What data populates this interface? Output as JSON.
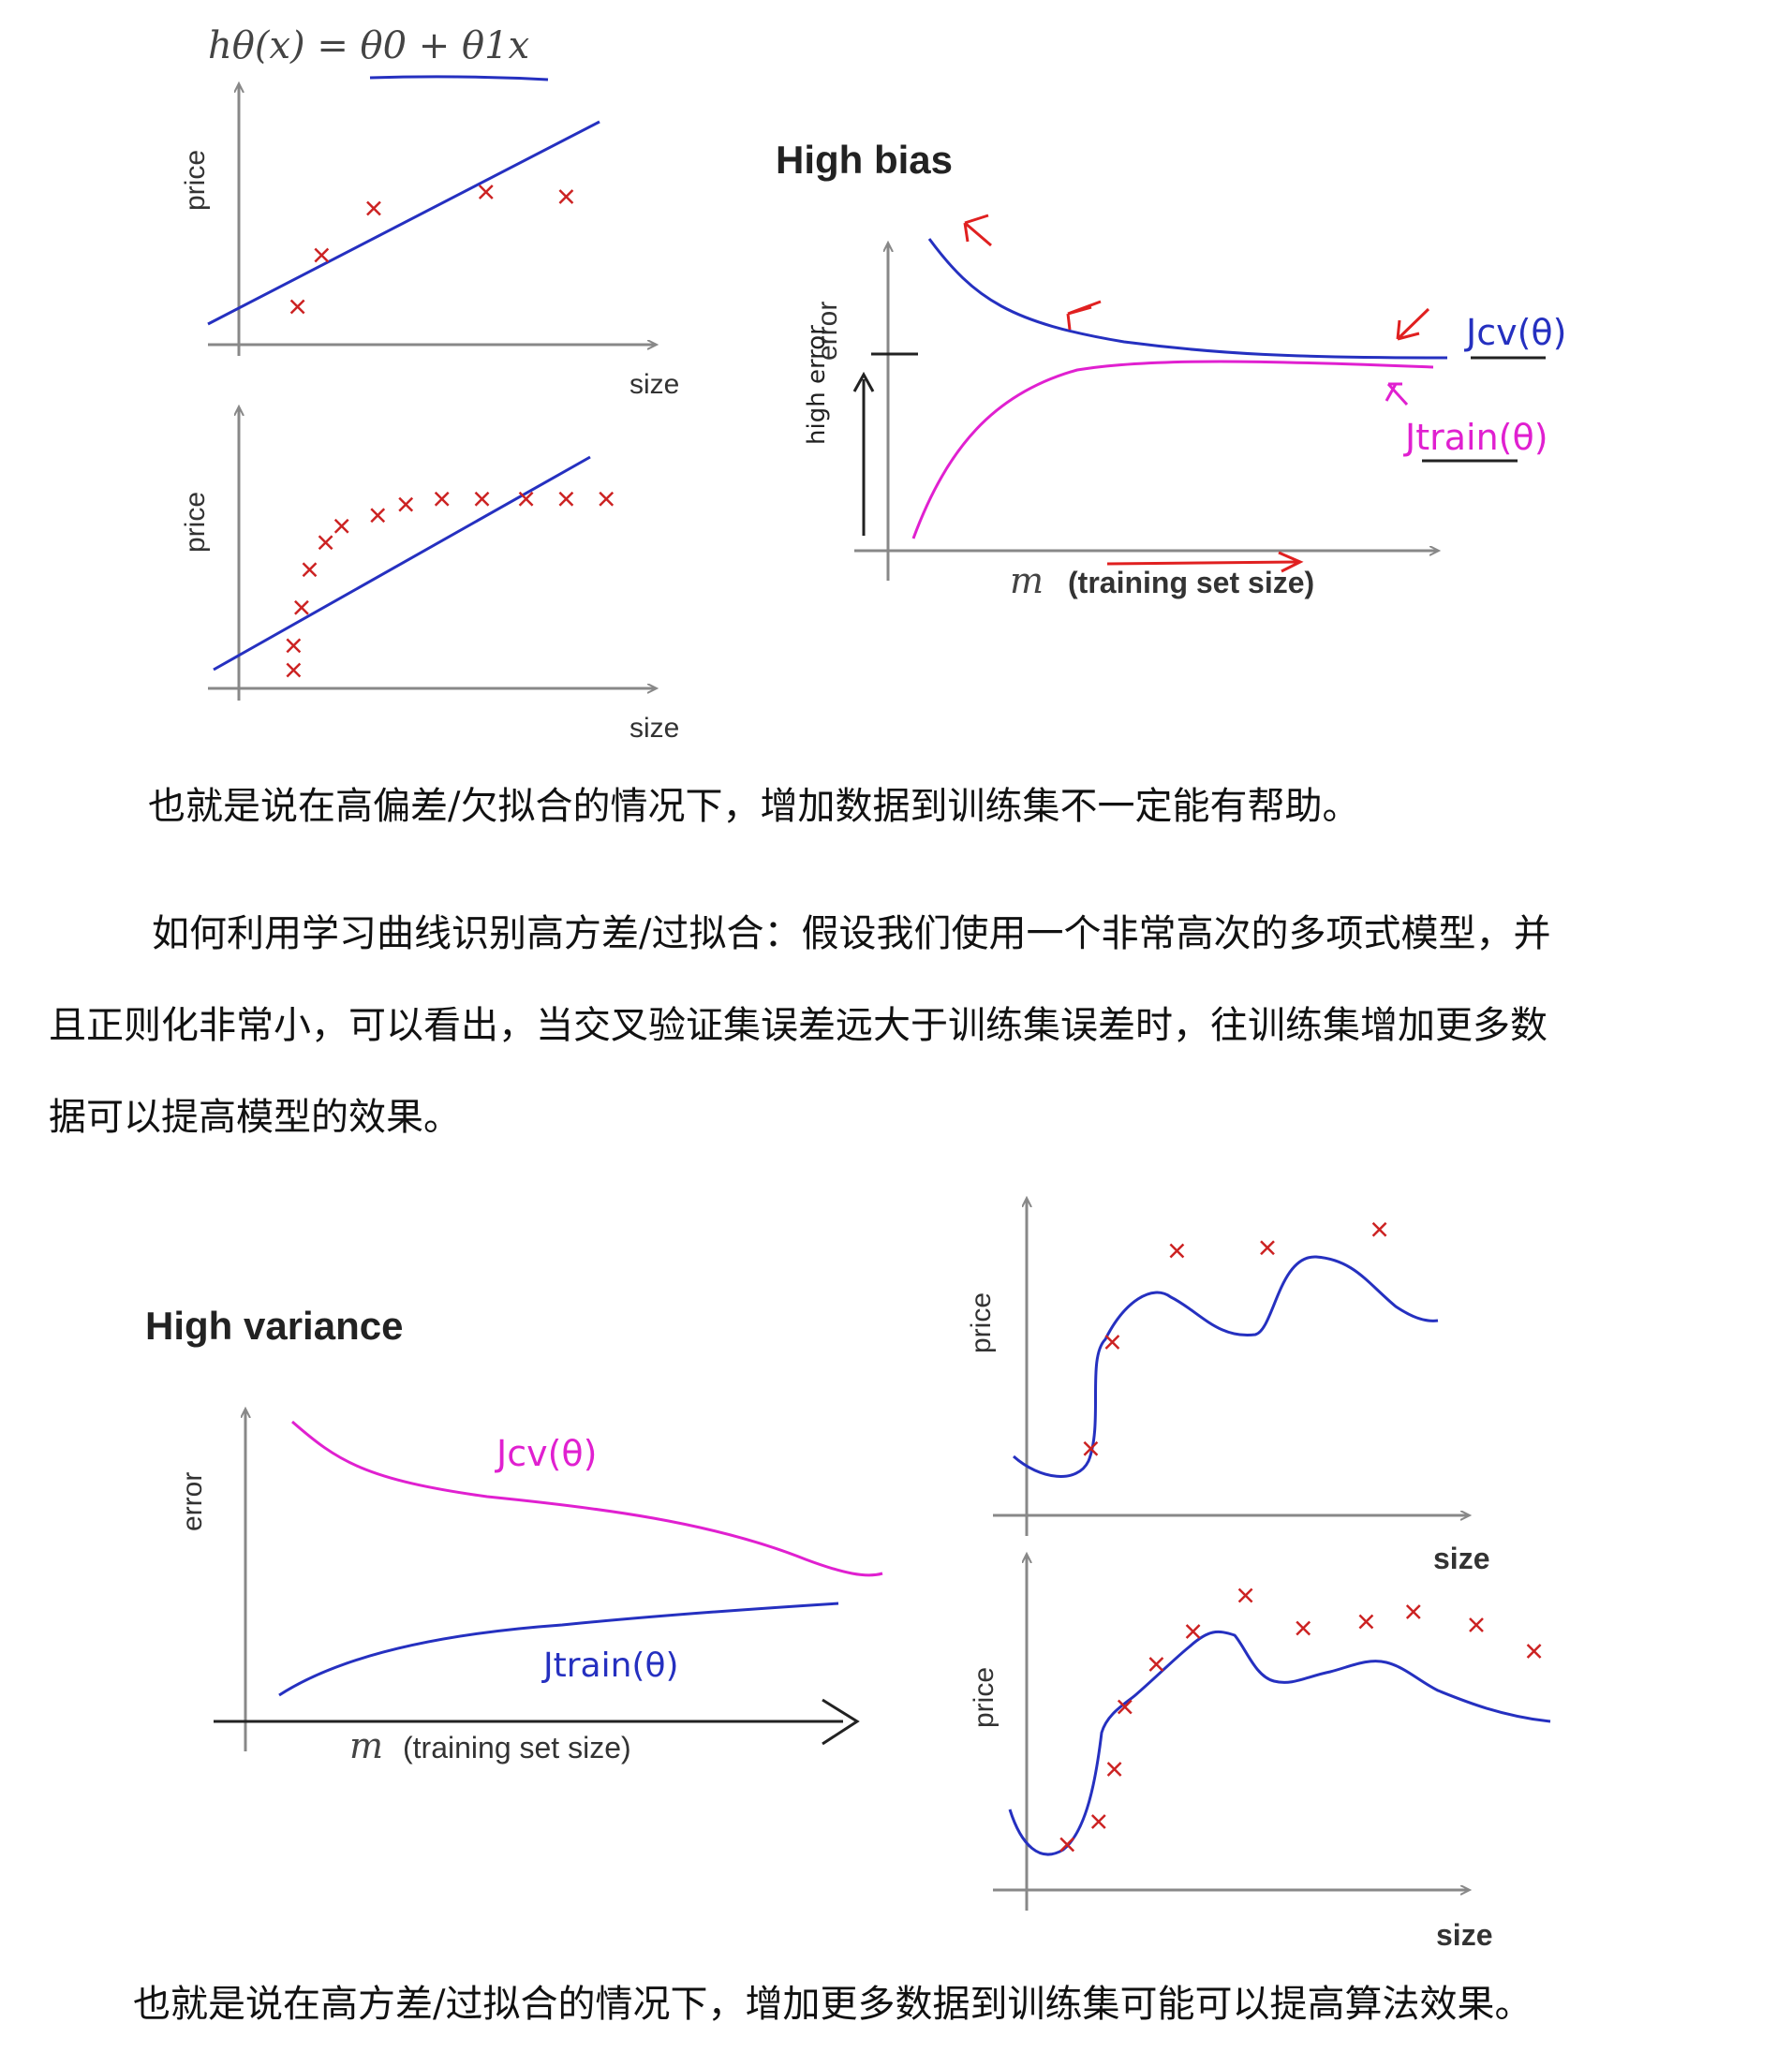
{
  "formula": "hθ(x) = θ0 + θ1x",
  "axis": {
    "price": "price",
    "size": "size",
    "error": "error"
  },
  "titles": {
    "high_bias": "High bias",
    "high_variance": "High variance"
  },
  "xaxis_label": {
    "m": "m",
    "rest": "(training set size)"
  },
  "curve_labels": {
    "jcv": "Jcv(θ)",
    "jtrain": "Jtrain(θ)",
    "high_error": "high error"
  },
  "text": {
    "p1": "也就是说在高偏差/欠拟合的情况下，增加数据到训练集不一定能有帮助。",
    "p2_l1": "如何利用学习曲线识别高方差/过拟合：假设我们使用一个非常高次的多项式模型，并",
    "p2_l2": "且正则化非常小，可以看出，当交叉验证集误差远大于训练集误差时，往训练集增加更多数",
    "p2_l3": "据可以提高模型的效果。",
    "p3": "也就是说在高方差/过拟合的情况下，增加更多数据到训练集可能可以提高算法效果。"
  },
  "colors": {
    "fit_line": "#2530c0",
    "points": "#cc2222",
    "jtrain_bias": "#e020d0",
    "annotation": "#e02020"
  },
  "chart_data": [
    {
      "type": "scatter",
      "title": "",
      "xlabel": "size",
      "ylabel": "price",
      "note": "linear fit, 5 points",
      "points": [
        [
          0.13,
          0.13
        ],
        [
          0.19,
          0.35
        ],
        [
          0.32,
          0.55
        ],
        [
          0.6,
          0.62
        ],
        [
          0.8,
          0.6
        ]
      ]
    },
    {
      "type": "scatter",
      "title": "",
      "xlabel": "size",
      "ylabel": "price",
      "note": "linear fit, many points",
      "points": [
        [
          0.12,
          0.05
        ],
        [
          0.12,
          0.14
        ],
        [
          0.14,
          0.28
        ],
        [
          0.16,
          0.42
        ],
        [
          0.2,
          0.52
        ],
        [
          0.24,
          0.58
        ],
        [
          0.33,
          0.62
        ],
        [
          0.4,
          0.66
        ],
        [
          0.49,
          0.68
        ],
        [
          0.59,
          0.68
        ],
        [
          0.7,
          0.68
        ],
        [
          0.8,
          0.68
        ],
        [
          0.9,
          0.68
        ]
      ]
    },
    {
      "type": "line",
      "title": "High bias",
      "xlabel": "m (training set size)",
      "ylabel": "error",
      "series": [
        {
          "name": "Jcv(θ)"
        },
        {
          "name": "Jtrain(θ)"
        }
      ]
    },
    {
      "type": "line",
      "title": "High variance",
      "xlabel": "m (training set size)",
      "ylabel": "error",
      "series": [
        {
          "name": "Jcv(θ)"
        },
        {
          "name": "Jtrain(θ)"
        }
      ]
    },
    {
      "type": "scatter",
      "title": "",
      "xlabel": "size",
      "ylabel": "price",
      "note": "high-order polynomial fit",
      "points": [
        [
          0.14,
          0.21
        ],
        [
          0.19,
          0.56
        ],
        [
          0.34,
          0.86
        ],
        [
          0.55,
          0.87
        ],
        [
          0.81,
          0.93
        ]
      ]
    },
    {
      "type": "scatter",
      "title": "",
      "xlabel": "size",
      "ylabel": "price",
      "note": "high-order polynomial fit, many points",
      "points": [
        [
          0.07,
          0.13
        ],
        [
          0.13,
          0.2
        ],
        [
          0.16,
          0.36
        ],
        [
          0.18,
          0.55
        ],
        [
          0.24,
          0.68
        ],
        [
          0.31,
          0.78
        ],
        [
          0.41,
          0.89
        ],
        [
          0.52,
          0.79
        ],
        [
          0.64,
          0.81
        ],
        [
          0.73,
          0.84
        ],
        [
          0.85,
          0.8
        ],
        [
          0.96,
          0.72
        ]
      ]
    }
  ]
}
